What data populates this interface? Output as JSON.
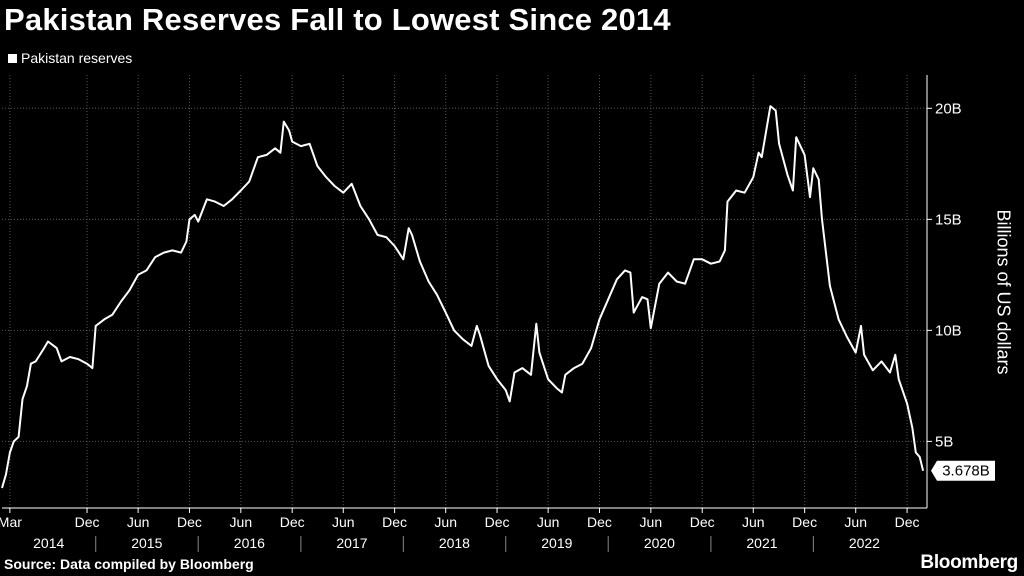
{
  "header": {
    "title": "Pakistan Reserves Fall to Lowest Since 2014",
    "legend_label": "Pakistan reserves"
  },
  "footer": {
    "source": "Source: Data compiled by Bloomberg",
    "brand": "Bloomberg"
  },
  "colors": {
    "background": "#000000",
    "line": "#ffffff",
    "grid": "#555555"
  },
  "chart_data": {
    "type": "line",
    "title": "Pakistan Reserves Fall to Lowest Since 2014",
    "ylabel": "Billions of US dollars",
    "ylim": [
      2.0,
      21.5
    ],
    "y_ticks": [
      {
        "value": 5,
        "label": "5B"
      },
      {
        "value": 10,
        "label": "10B"
      },
      {
        "value": 15,
        "label": "15B"
      },
      {
        "value": 20,
        "label": "20B"
      }
    ],
    "x_range": [
      "2014-02-01",
      "2023-02-10"
    ],
    "x_ticks": [
      {
        "date": "2014-03-01",
        "label": "Mar"
      },
      {
        "date": "2014-12-01",
        "label": "Dec"
      },
      {
        "date": "2015-06-01",
        "label": "Jun"
      },
      {
        "date": "2015-12-01",
        "label": "Dec"
      },
      {
        "date": "2016-06-01",
        "label": "Jun"
      },
      {
        "date": "2016-12-01",
        "label": "Dec"
      },
      {
        "date": "2017-06-01",
        "label": "Jun"
      },
      {
        "date": "2017-12-01",
        "label": "Dec"
      },
      {
        "date": "2018-06-01",
        "label": "Jun"
      },
      {
        "date": "2018-12-01",
        "label": "Dec"
      },
      {
        "date": "2019-06-01",
        "label": "Jun"
      },
      {
        "date": "2019-12-01",
        "label": "Dec"
      },
      {
        "date": "2020-06-01",
        "label": "Jun"
      },
      {
        "date": "2020-12-01",
        "label": "Dec"
      },
      {
        "date": "2021-06-01",
        "label": "Jun"
      },
      {
        "date": "2021-12-01",
        "label": "Dec"
      },
      {
        "date": "2022-06-01",
        "label": "Jun"
      },
      {
        "date": "2022-12-01",
        "label": "Dec"
      }
    ],
    "year_labels": [
      {
        "label": "2014",
        "start": "2014-02-01",
        "end": "2014-12-31"
      },
      {
        "label": "2015",
        "start": "2015-01-01",
        "end": "2015-12-31"
      },
      {
        "label": "2016",
        "start": "2016-01-01",
        "end": "2016-12-31"
      },
      {
        "label": "2017",
        "start": "2017-01-01",
        "end": "2017-12-31"
      },
      {
        "label": "2018",
        "start": "2018-01-01",
        "end": "2018-12-31"
      },
      {
        "label": "2019",
        "start": "2019-01-01",
        "end": "2019-12-31"
      },
      {
        "label": "2020",
        "start": "2020-01-01",
        "end": "2020-12-31"
      },
      {
        "label": "2021",
        "start": "2021-01-01",
        "end": "2021-12-31"
      },
      {
        "label": "2022",
        "start": "2022-01-01",
        "end": "2022-12-31"
      }
    ],
    "grid": true,
    "legend": "top-left",
    "last_value_label": "3.678B",
    "series": [
      {
        "name": "Pakistan reserves",
        "points": [
          [
            "2014-02-01",
            2.9
          ],
          [
            "2014-02-15",
            3.5
          ],
          [
            "2014-03-01",
            4.5
          ],
          [
            "2014-03-15",
            5.0
          ],
          [
            "2014-04-01",
            5.2
          ],
          [
            "2014-04-15",
            6.9
          ],
          [
            "2014-05-01",
            7.5
          ],
          [
            "2014-05-15",
            8.5
          ],
          [
            "2014-06-01",
            8.6
          ],
          [
            "2014-07-01",
            9.2
          ],
          [
            "2014-07-15",
            9.5
          ],
          [
            "2014-08-15",
            9.2
          ],
          [
            "2014-09-01",
            8.6
          ],
          [
            "2014-10-01",
            8.8
          ],
          [
            "2014-11-01",
            8.7
          ],
          [
            "2014-12-01",
            8.5
          ],
          [
            "2014-12-20",
            8.3
          ],
          [
            "2015-01-01",
            10.2
          ],
          [
            "2015-02-01",
            10.5
          ],
          [
            "2015-03-01",
            10.7
          ],
          [
            "2015-04-01",
            11.3
          ],
          [
            "2015-05-01",
            11.8
          ],
          [
            "2015-06-01",
            12.5
          ],
          [
            "2015-07-01",
            12.7
          ],
          [
            "2015-08-01",
            13.3
          ],
          [
            "2015-09-01",
            13.5
          ],
          [
            "2015-10-01",
            13.6
          ],
          [
            "2015-11-01",
            13.5
          ],
          [
            "2015-11-20",
            14.0
          ],
          [
            "2015-12-01",
            15.0
          ],
          [
            "2015-12-20",
            15.2
          ],
          [
            "2016-01-01",
            14.9
          ],
          [
            "2016-02-01",
            15.9
          ],
          [
            "2016-03-01",
            15.8
          ],
          [
            "2016-04-01",
            15.6
          ],
          [
            "2016-05-01",
            15.9
          ],
          [
            "2016-06-01",
            16.3
          ],
          [
            "2016-07-01",
            16.7
          ],
          [
            "2016-08-01",
            17.8
          ],
          [
            "2016-09-01",
            17.9
          ],
          [
            "2016-10-01",
            18.2
          ],
          [
            "2016-10-20",
            18.0
          ],
          [
            "2016-11-01",
            19.4
          ],
          [
            "2016-11-20",
            19.0
          ],
          [
            "2016-12-01",
            18.5
          ],
          [
            "2017-01-01",
            18.3
          ],
          [
            "2017-02-01",
            18.4
          ],
          [
            "2017-03-01",
            17.4
          ],
          [
            "2017-04-01",
            16.9
          ],
          [
            "2017-05-01",
            16.5
          ],
          [
            "2017-06-01",
            16.2
          ],
          [
            "2017-07-01",
            16.6
          ],
          [
            "2017-08-01",
            15.6
          ],
          [
            "2017-09-01",
            15.0
          ],
          [
            "2017-10-01",
            14.3
          ],
          [
            "2017-11-01",
            14.2
          ],
          [
            "2017-12-01",
            13.8
          ],
          [
            "2018-01-01",
            13.2
          ],
          [
            "2018-01-20",
            14.6
          ],
          [
            "2018-02-01",
            14.3
          ],
          [
            "2018-03-01",
            13.1
          ],
          [
            "2018-04-01",
            12.2
          ],
          [
            "2018-05-01",
            11.6
          ],
          [
            "2018-06-01",
            10.8
          ],
          [
            "2018-07-01",
            10.0
          ],
          [
            "2018-08-01",
            9.6
          ],
          [
            "2018-09-01",
            9.3
          ],
          [
            "2018-09-20",
            10.2
          ],
          [
            "2018-10-01",
            9.8
          ],
          [
            "2018-11-01",
            8.4
          ],
          [
            "2018-12-01",
            7.8
          ],
          [
            "2019-01-01",
            7.3
          ],
          [
            "2019-01-15",
            6.8
          ],
          [
            "2019-02-01",
            8.1
          ],
          [
            "2019-03-01",
            8.3
          ],
          [
            "2019-04-01",
            8.0
          ],
          [
            "2019-04-20",
            10.3
          ],
          [
            "2019-05-01",
            9.0
          ],
          [
            "2019-06-01",
            7.8
          ],
          [
            "2019-07-01",
            7.4
          ],
          [
            "2019-07-20",
            7.2
          ],
          [
            "2019-08-01",
            8.0
          ],
          [
            "2019-09-01",
            8.3
          ],
          [
            "2019-10-01",
            8.5
          ],
          [
            "2019-11-01",
            9.2
          ],
          [
            "2019-12-01",
            10.5
          ],
          [
            "2020-01-01",
            11.4
          ],
          [
            "2020-02-01",
            12.3
          ],
          [
            "2020-03-01",
            12.7
          ],
          [
            "2020-03-20",
            12.6
          ],
          [
            "2020-04-01",
            10.8
          ],
          [
            "2020-05-01",
            11.5
          ],
          [
            "2020-05-20",
            11.4
          ],
          [
            "2020-06-01",
            10.1
          ],
          [
            "2020-07-01",
            12.1
          ],
          [
            "2020-08-01",
            12.6
          ],
          [
            "2020-09-01",
            12.2
          ],
          [
            "2020-10-01",
            12.1
          ],
          [
            "2020-11-01",
            13.2
          ],
          [
            "2020-12-01",
            13.2
          ],
          [
            "2021-01-01",
            13.0
          ],
          [
            "2021-02-01",
            13.1
          ],
          [
            "2021-02-20",
            13.6
          ],
          [
            "2021-03-01",
            15.8
          ],
          [
            "2021-04-01",
            16.3
          ],
          [
            "2021-05-01",
            16.2
          ],
          [
            "2021-06-01",
            16.9
          ],
          [
            "2021-06-20",
            18.0
          ],
          [
            "2021-07-01",
            17.8
          ],
          [
            "2021-08-01",
            20.1
          ],
          [
            "2021-08-20",
            19.9
          ],
          [
            "2021-09-01",
            18.4
          ],
          [
            "2021-10-01",
            17.0
          ],
          [
            "2021-10-20",
            16.3
          ],
          [
            "2021-11-01",
            18.7
          ],
          [
            "2021-12-01",
            17.9
          ],
          [
            "2021-12-20",
            16.0
          ],
          [
            "2022-01-01",
            17.3
          ],
          [
            "2022-01-20",
            16.8
          ],
          [
            "2022-02-01",
            15.0
          ],
          [
            "2022-03-01",
            12.0
          ],
          [
            "2022-04-01",
            10.5
          ],
          [
            "2022-05-01",
            9.7
          ],
          [
            "2022-06-01",
            9.0
          ],
          [
            "2022-06-20",
            10.2
          ],
          [
            "2022-07-01",
            8.9
          ],
          [
            "2022-08-01",
            8.2
          ],
          [
            "2022-09-01",
            8.6
          ],
          [
            "2022-10-01",
            8.1
          ],
          [
            "2022-10-20",
            8.9
          ],
          [
            "2022-11-01",
            7.8
          ],
          [
            "2022-12-01",
            6.7
          ],
          [
            "2022-12-20",
            5.6
          ],
          [
            "2023-01-01",
            4.5
          ],
          [
            "2023-01-15",
            4.3
          ],
          [
            "2023-01-27",
            3.678
          ]
        ]
      }
    ]
  }
}
